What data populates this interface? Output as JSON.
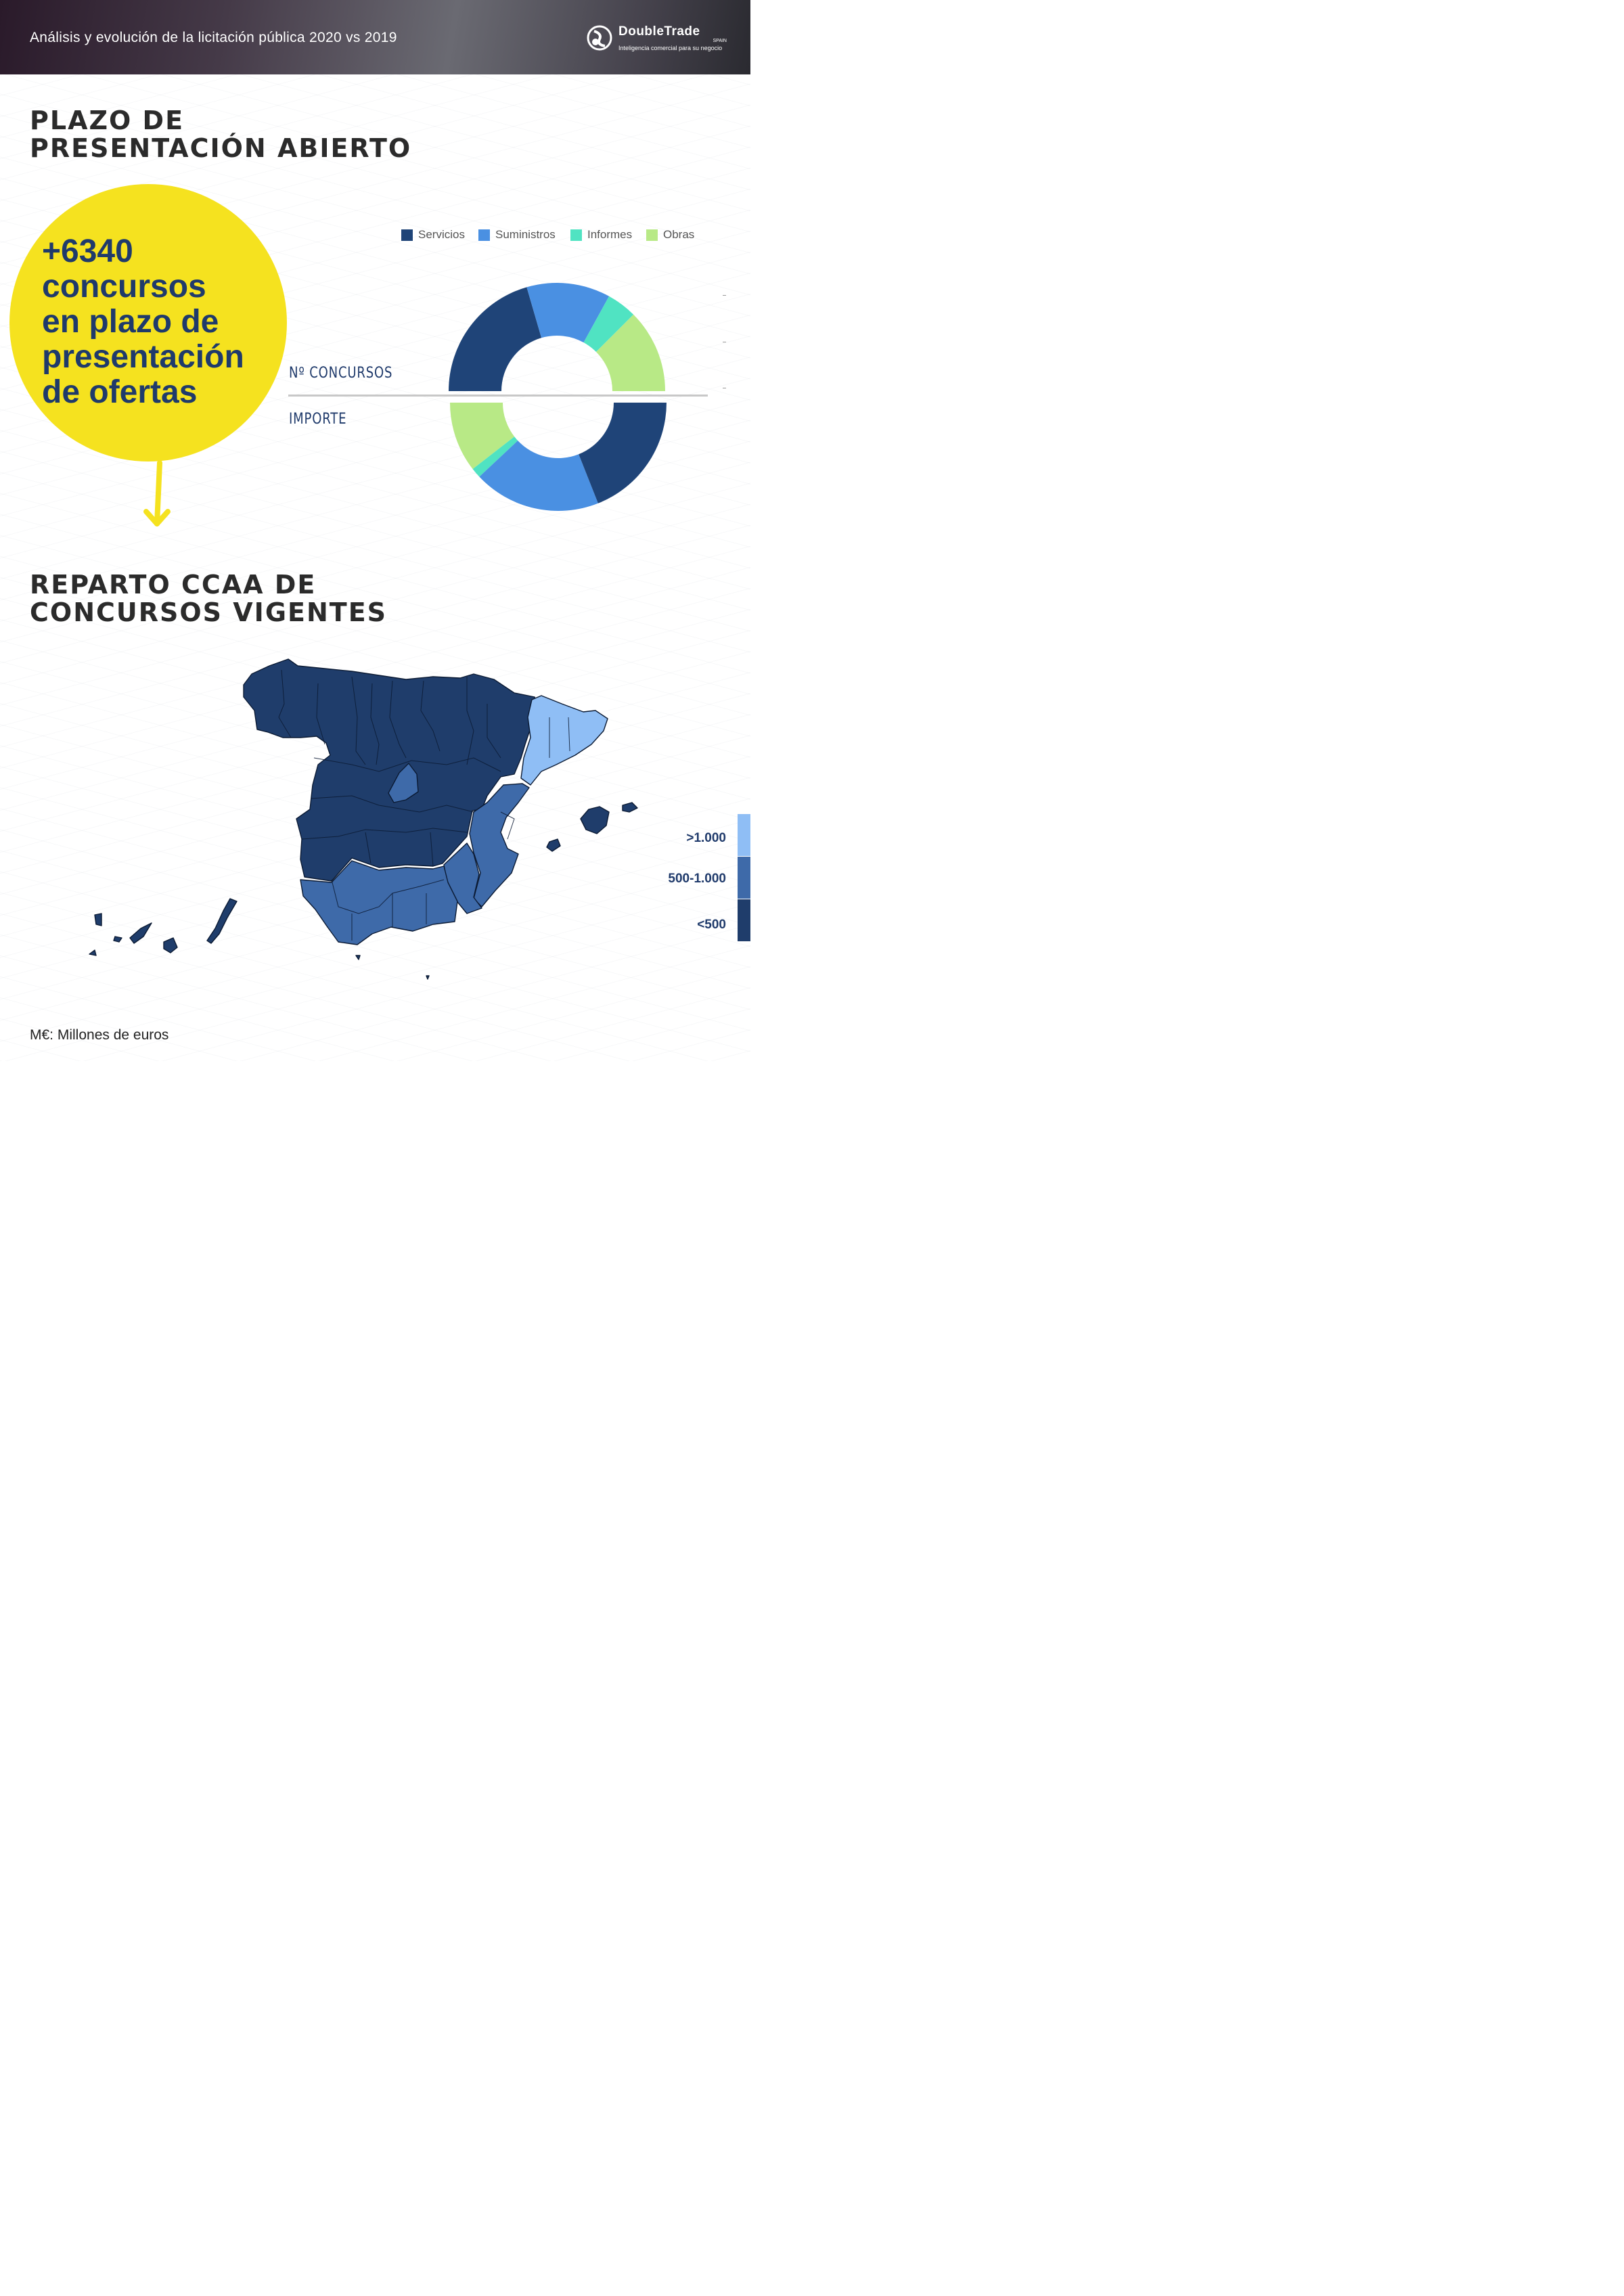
{
  "header": {
    "title": "Análisis y evolución de la licitación pública 2020 vs 2019",
    "logo_brand": "DoubleTrade",
    "logo_country": "SPAIN",
    "logo_tagline": "Inteligencia comercial para  su negocio"
  },
  "section1": {
    "title_line1": "PLAZO DE",
    "title_line2": "PRESENTACIÓN ABIERTO"
  },
  "highlight": {
    "lines": [
      "+6340",
      "concursos",
      "en plazo de",
      "presentación",
      "de ofertas"
    ],
    "circle_color": "#f5e21f"
  },
  "chart_data": [
    {
      "type": "pie",
      "subtype": "half-donut",
      "label": "Nº CONCURSOS",
      "position": "top",
      "categories": [
        "Servicios",
        "Suministros",
        "Informes",
        "Obras"
      ],
      "values": [
        41,
        25,
        9,
        25
      ],
      "colors": [
        "#1f4478",
        "#4a90e2",
        "#50e3c2",
        "#b8e986"
      ]
    },
    {
      "type": "pie",
      "subtype": "half-donut",
      "label": "IMPORTE",
      "position": "bottom",
      "categories": [
        "Obras",
        "Informes",
        "Suministros",
        "Servicios"
      ],
      "values": [
        21,
        3,
        38,
        38
      ],
      "colors": [
        "#b8e986",
        "#50e3c2",
        "#4a90e2",
        "#1f4478"
      ]
    }
  ],
  "legend": [
    {
      "label": "Servicios",
      "color": "#1f4478"
    },
    {
      "label": "Suministros",
      "color": "#4a90e2"
    },
    {
      "label": "Informes",
      "color": "#50e3c2"
    },
    {
      "label": "Obras",
      "color": "#b8e986"
    }
  ],
  "section2": {
    "title_line1": "REPARTO CCAA DE",
    "title_line2": "CONCURSOS VIGENTES"
  },
  "map": {
    "scale": [
      {
        "label": ">1.000",
        "color": "#8fbef5"
      },
      {
        "label": "500-1.000",
        "color": "#3e6aa9"
      },
      {
        "label": "<500",
        "color": "#1f3d6b"
      }
    ]
  },
  "footnote": "M€: Millones de euros"
}
